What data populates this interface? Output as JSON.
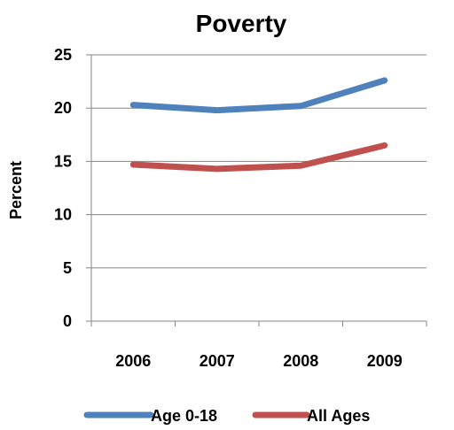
{
  "chart_data": {
    "type": "line",
    "title": "Poverty",
    "xlabel": "",
    "ylabel": "Percent",
    "categories": [
      "2006",
      "2007",
      "2008",
      "2009"
    ],
    "yticks": [
      "0",
      "5",
      "10",
      "15",
      "20",
      "25"
    ],
    "ylim": [
      0,
      25
    ],
    "grid": true,
    "legend_position": "bottom",
    "series": [
      {
        "name": "Age 0-18",
        "color": "#4F81BD",
        "values": [
          20.3,
          19.8,
          20.2,
          22.6
        ]
      },
      {
        "name": "All Ages",
        "color": "#C0504D",
        "values": [
          14.7,
          14.3,
          14.6,
          16.5
        ]
      }
    ]
  }
}
